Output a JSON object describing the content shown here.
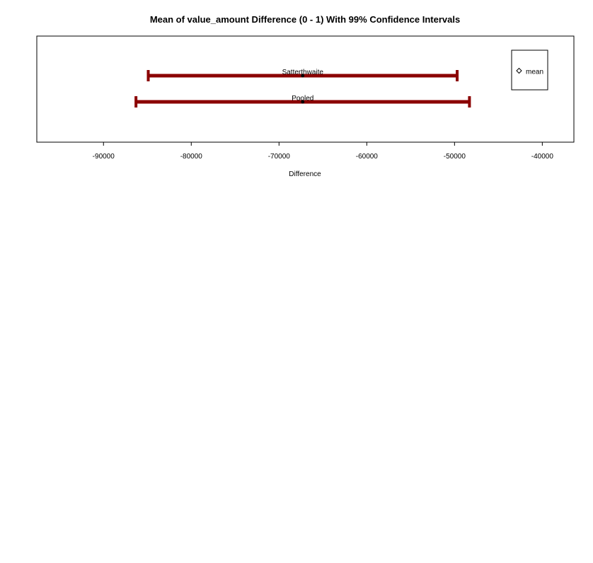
{
  "chart_data": {
    "type": "interval",
    "title": "Mean of value_amount Difference (0 - 1) With 99% Confidence Intervals",
    "xlabel": "Difference",
    "ylabel": "",
    "xlim": [
      -97600,
      -36400
    ],
    "x_ticks": [
      -90000,
      -80000,
      -70000,
      -60000,
      -50000,
      -40000
    ],
    "x_tick_labels": [
      "-90000",
      "-80000",
      "-70000",
      "-60000",
      "-50000",
      "-40000"
    ],
    "grid": false,
    "legend": {
      "placement": "top-right",
      "entries": [
        "mean"
      ]
    },
    "intervals": [
      {
        "label": "Satterthwaite",
        "lower": -84900,
        "upper": -49700,
        "mean": -67300
      },
      {
        "label": "Pooled",
        "lower": -86300,
        "upper": -48300,
        "mean": -67300
      }
    ],
    "colors": {
      "interval": "#8b0000",
      "mean_point": "#000000",
      "frame": "#000000"
    }
  }
}
